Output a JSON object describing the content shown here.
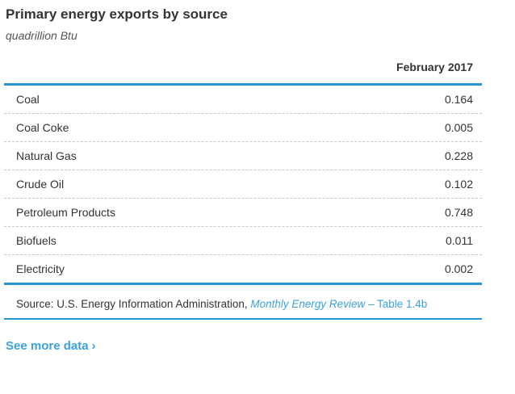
{
  "title": "Primary energy exports by source",
  "subtitle": "quadrillion Btu",
  "table": {
    "column_header": "February 2017",
    "rows": [
      {
        "label": "Coal",
        "value": "0.164"
      },
      {
        "label": "Coal Coke",
        "value": "0.005"
      },
      {
        "label": "Natural Gas",
        "value": "0.228"
      },
      {
        "label": "Crude Oil",
        "value": "0.102"
      },
      {
        "label": "Petroleum Products",
        "value": "0.748"
      },
      {
        "label": "Biofuels",
        "value": "0.011"
      },
      {
        "label": "Electricity",
        "value": "0.002"
      }
    ]
  },
  "source": {
    "prefix": "Source: U.S. Energy Information Administration, ",
    "link_italic": "Monthly Energy Review",
    "link_suffix": " – Table 1.4b"
  },
  "see_more": {
    "label": "See more data",
    "chevron": "›"
  },
  "colors": {
    "accent_blue_rule": "#2596d1",
    "link_blue": "#3ba2dc",
    "text_dark": "#333333",
    "subtitle_gray": "#555555",
    "divider_dashed_gray": "#c8c8c8",
    "background": "#ffffff"
  },
  "chart_data": {
    "type": "table",
    "title": "Primary energy exports by source",
    "unit": "quadrillion Btu",
    "period": "February 2017",
    "categories": [
      "Coal",
      "Coal Coke",
      "Natural Gas",
      "Crude Oil",
      "Petroleum Products",
      "Biofuels",
      "Electricity"
    ],
    "values": [
      0.164,
      0.005,
      0.228,
      0.102,
      0.748,
      0.011,
      0.002
    ],
    "source": "U.S. Energy Information Administration, Monthly Energy Review – Table 1.4b"
  }
}
